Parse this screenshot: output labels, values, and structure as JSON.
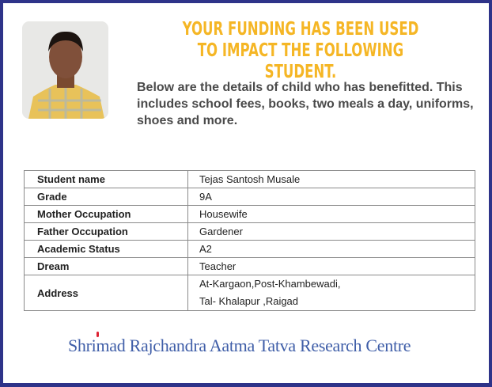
{
  "headline": "YOUR FUNDING HAS BEEN USED TO IMPACT THE FOLLOWING STUDENT.",
  "intro": "Below are the details of child who has benefitted. This includes school fees, books, two meals a day, uniforms, shoes and more.",
  "details": [
    {
      "label": "Student name",
      "value": "Tejas Santosh Musale"
    },
    {
      "label": "Grade",
      "value": "9A"
    },
    {
      "label": "Mother Occupation",
      "value": "Housewife"
    },
    {
      "label": "Father Occupation",
      "value": "Gardener"
    },
    {
      "label": "Academic Status",
      "value": "A2"
    },
    {
      "label": "Dream",
      "value": "Teacher"
    },
    {
      "label": "Address",
      "value": [
        "At-Kargaon,Post-Khambewadi,",
        "Tal- Khalapur ,Raigad"
      ]
    }
  ],
  "logo": "Shrimad Rajchandra Aatma Tatva Research Centre",
  "colors": {
    "border": "#2e3389",
    "headline": "#f5b625",
    "logo": "#3f5ea8"
  }
}
